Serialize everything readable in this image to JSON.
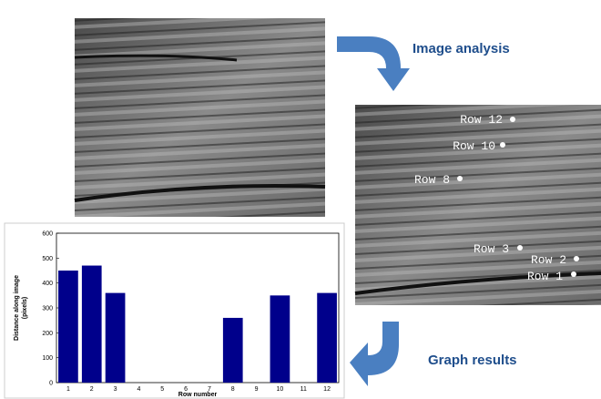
{
  "steps": {
    "analysis": "Image analysis",
    "graph": "Graph results"
  },
  "image_labels": [
    "Row 12",
    "Row 10",
    "Row 8",
    "Row 3",
    "Row 2",
    "Row 1"
  ],
  "chart_data": {
    "type": "bar",
    "x_label": "Row number",
    "y_label": [
      "Distance along image",
      "(pixels)"
    ],
    "categories": [
      "1",
      "2",
      "3",
      "4",
      "5",
      "6",
      "7",
      "8",
      "9",
      "10",
      "11",
      "12"
    ],
    "values": [
      450,
      470,
      360,
      null,
      null,
      null,
      null,
      260,
      null,
      350,
      null,
      360
    ],
    "color": "#00008b",
    "ylim": [
      0,
      600
    ],
    "yticks": [
      0,
      100,
      200,
      300,
      400,
      500,
      600
    ]
  }
}
